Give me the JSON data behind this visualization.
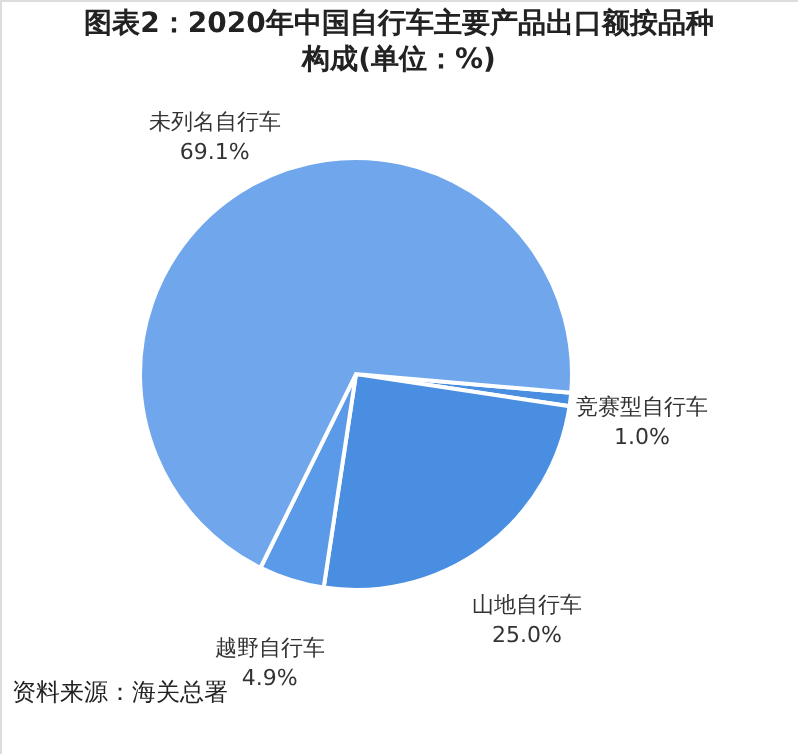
{
  "chart_data": {
    "type": "pie",
    "title": "图表2：2020年中国自行车主要产品出口额按品种构成(单位：%)",
    "categories": [
      "竞赛型自行车",
      "山地自行车",
      "越野自行车",
      "未列名自行车"
    ],
    "values": [
      1.0,
      25.0,
      4.9,
      69.1
    ],
    "colors": [
      "#4a8ee2",
      "#4a8ee2",
      "#5a9ae8",
      "#6fa6ec"
    ],
    "value_labels": [
      "1.0%",
      "25.0%",
      "4.9%",
      "69.1%"
    ],
    "annotations": [
      "资料来源：海关总署"
    ]
  }
}
